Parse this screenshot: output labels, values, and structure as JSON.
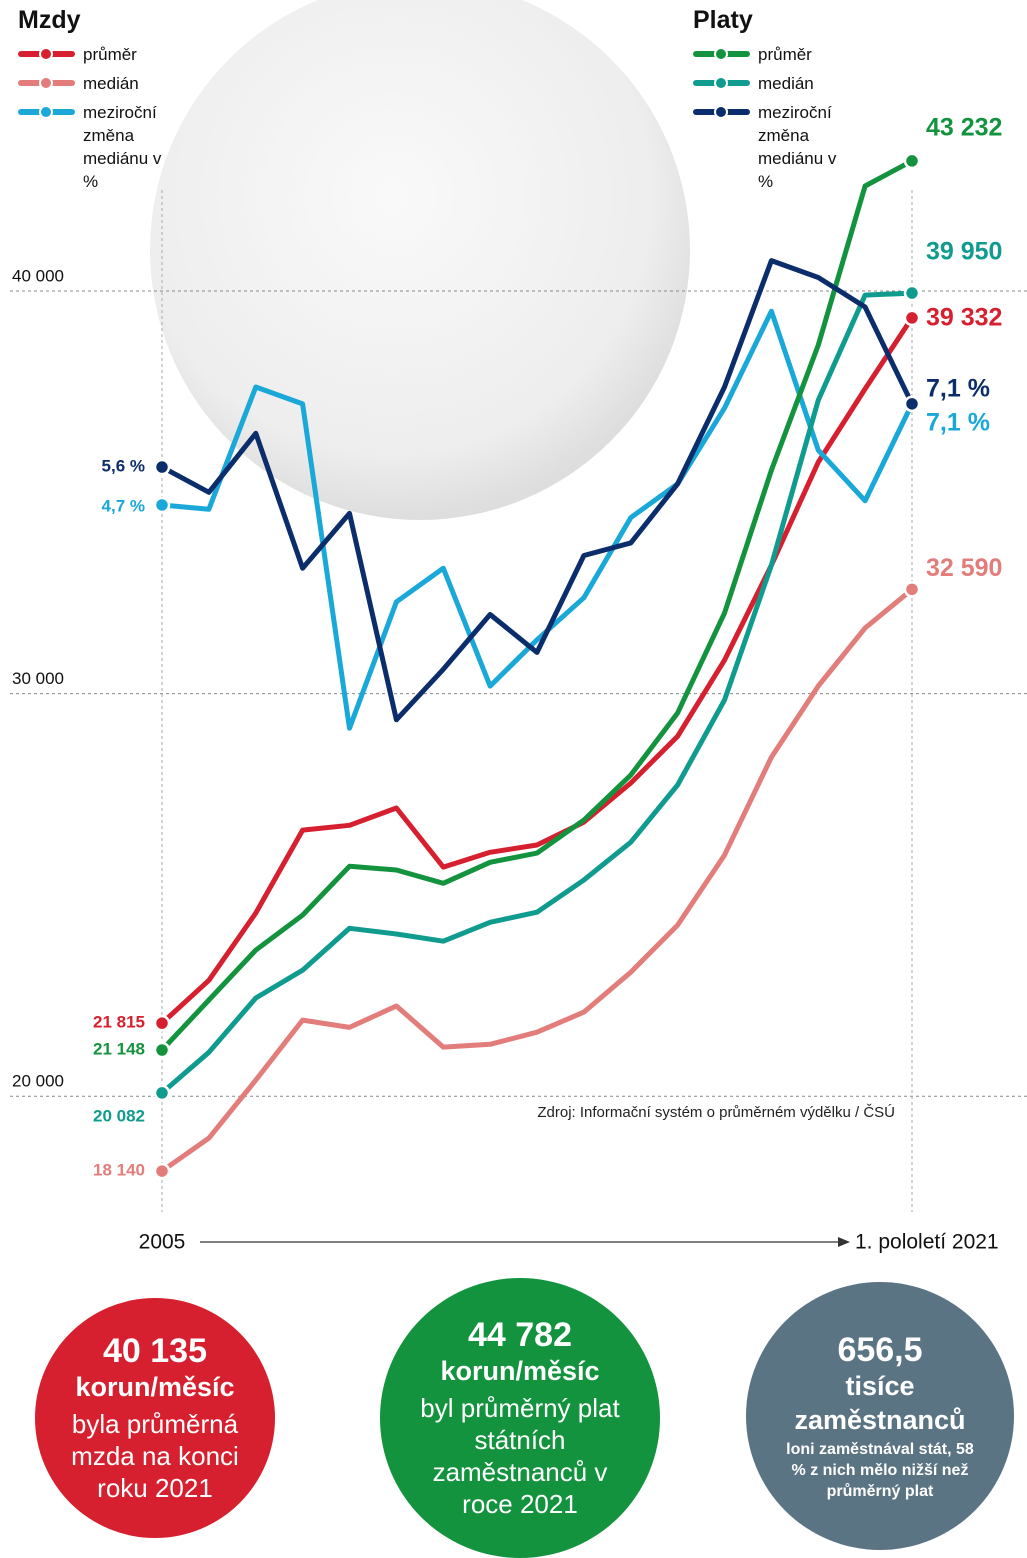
{
  "chart_data": {
    "type": "line",
    "categories": [
      "2005",
      null,
      null,
      null,
      null,
      null,
      null,
      null,
      null,
      null,
      null,
      null,
      null,
      null,
      null,
      null,
      "1. pololetí 2021"
    ],
    "ylim": [
      17000,
      44000
    ],
    "yticks": [
      {
        "value": 20000,
        "label": "20 000"
      },
      {
        "value": 30000,
        "label": "30 000"
      },
      {
        "value": 40000,
        "label": "40 000"
      }
    ],
    "y2lim": [
      -12.2,
      13.6
    ],
    "grid": true,
    "source": "Zdroj: Informační systém o průměrném výdělku / ČSÚ",
    "groups": [
      {
        "title": "Mzdy",
        "series": [
          {
            "name": "průměr",
            "color": "#d7202f",
            "values": [
              21815,
              22880,
              24550,
              26610,
              26730,
              27160,
              25690,
              26060,
              26240,
              26810,
              27780,
              28940,
              30830,
              33190,
              35750,
              37570,
              39332
            ],
            "value_labels": [
              "21 815",
              null,
              null,
              null,
              null,
              null,
              null,
              null,
              null,
              null,
              null,
              null,
              null,
              null,
              null,
              null,
              "39 332"
            ]
          },
          {
            "name": "medián",
            "color": "#e27d7b",
            "values": [
              18140,
              18960,
              20400,
              21890,
              21710,
              22240,
              21220,
              21290,
              21590,
              22090,
              23080,
              24250,
              25990,
              28420,
              30190,
              31630,
              32590
            ],
            "value_labels": [
              "18 140",
              null,
              null,
              null,
              null,
              null,
              null,
              null,
              null,
              null,
              null,
              null,
              null,
              null,
              null,
              null,
              "32 590"
            ]
          },
          {
            "name": "meziroční změna mediánu v %",
            "color": "#1aa8d8",
            "axis": "y2",
            "values": [
              4.7,
              4.6,
              7.5,
              7.1,
              -0.6,
              2.4,
              3.2,
              0.4,
              1.5,
              2.5,
              4.4,
              5.2,
              7.0,
              9.3,
              6.0,
              4.8,
              7.1
            ],
            "value_labels": [
              "4,7 %",
              null,
              null,
              null,
              null,
              null,
              null,
              null,
              null,
              null,
              null,
              null,
              null,
              null,
              null,
              null,
              "7,1 %"
            ]
          }
        ]
      },
      {
        "title": "Platy",
        "series": [
          {
            "name": "průměr",
            "color": "#14933f",
            "values": [
              21148,
              22390,
              23630,
              24500,
              25710,
              25620,
              25290,
              25810,
              26040,
              26860,
              27980,
              29520,
              32000,
              35550,
              38660,
              42610,
              43232
            ],
            "value_labels": [
              "21 148",
              null,
              null,
              null,
              null,
              null,
              null,
              null,
              null,
              null,
              null,
              null,
              null,
              null,
              null,
              null,
              "43 232"
            ]
          },
          {
            "name": "medián",
            "color": "#0f9c8f",
            "values": [
              20082,
              21090,
              22440,
              23130,
              24170,
              24030,
              23850,
              24320,
              24570,
              25370,
              26310,
              27730,
              29840,
              33190,
              37290,
              39900,
              39950
            ],
            "value_labels": [
              "20 082",
              null,
              null,
              null,
              null,
              null,
              null,
              null,
              null,
              null,
              null,
              null,
              null,
              null,
              null,
              null,
              "39 950"
            ]
          },
          {
            "name": "meziroční změna mediánu v %",
            "color": "#0c2d6b",
            "axis": "y2",
            "values": [
              5.6,
              5.0,
              6.4,
              3.2,
              4.5,
              -0.4,
              0.8,
              2.1,
              1.2,
              3.5,
              3.8,
              5.2,
              7.5,
              10.5,
              10.1,
              9.4,
              7.1
            ],
            "value_labels": [
              "5,6 %",
              null,
              null,
              null,
              null,
              null,
              null,
              null,
              null,
              null,
              null,
              null,
              null,
              null,
              null,
              null,
              "7,1 %"
            ]
          }
        ]
      }
    ]
  },
  "stats": [
    {
      "value": "40 135",
      "unit": "korun/měsíc",
      "text": "byla průměrná mzda na konci roku 2021"
    },
    {
      "value": "44 782",
      "unit": "korun/měsíc",
      "text": "byl průměrný plat státních zaměstnanců v roce 2021"
    },
    {
      "value": "656,5",
      "unit": "tisíce zaměstnanců",
      "text": "loni zaměstnával stát, 58 % z nich mělo nižší než průměrný plat"
    }
  ]
}
